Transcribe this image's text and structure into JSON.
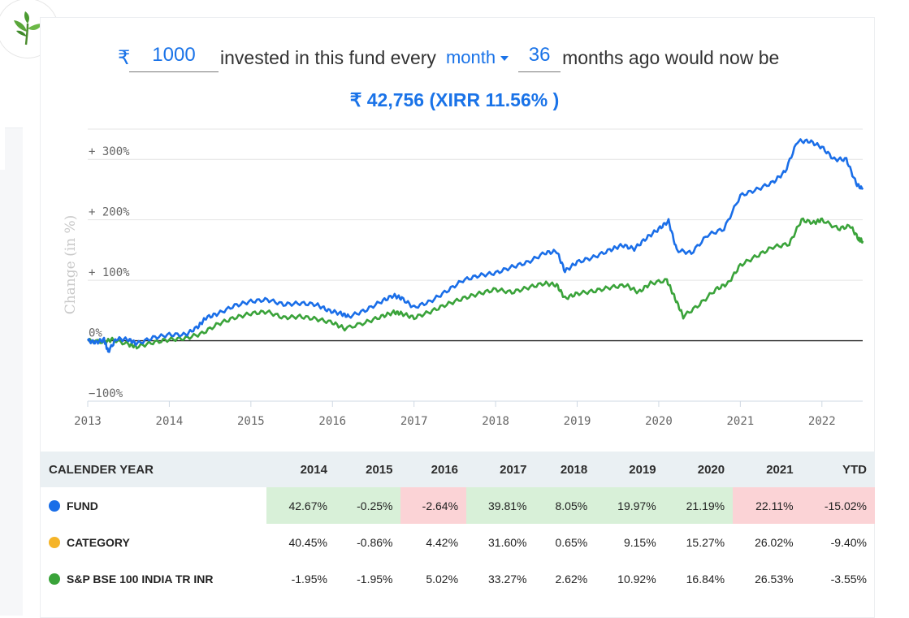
{
  "sip": {
    "currency_symbol": "₹",
    "amount": "1000",
    "text_invested": "invested in this fund every",
    "frequency": "month",
    "months": "36",
    "text_after": "months ago would now be",
    "result": "₹ 42,756 (XIRR 11.56% )"
  },
  "colors": {
    "accent": "#1a73e8",
    "fund_line": "#1a6ee8",
    "benchmark_line": "#3aa33a",
    "category_dot": "#f5b428",
    "positive_bg": "#d8f0d8",
    "negative_bg": "#fbd3d6"
  },
  "chart_data": {
    "type": "line",
    "ylabel": "Change (in %)",
    "ylim": [
      -100,
      350
    ],
    "xlim": [
      2013,
      2022.5
    ],
    "y_ticks": [
      {
        "value": 300,
        "label": "+ 300%"
      },
      {
        "value": 200,
        "label": "+ 200%"
      },
      {
        "value": 100,
        "label": "+ 100%"
      },
      {
        "value": 0,
        "label": "0%"
      },
      {
        "value": -100,
        "label": "−100%"
      }
    ],
    "x_ticks": [
      "2013",
      "2014",
      "2015",
      "2016",
      "2017",
      "2018",
      "2019",
      "2020",
      "2021",
      "2022"
    ],
    "series": [
      {
        "key": "fund",
        "color": "#1a6ee8",
        "points": [
          [
            2013.0,
            0
          ],
          [
            2013.1,
            -3
          ],
          [
            2013.2,
            2
          ],
          [
            2013.25,
            -18
          ],
          [
            2013.35,
            3
          ],
          [
            2013.5,
            2
          ],
          [
            2013.6,
            -5
          ],
          [
            2013.8,
            5
          ],
          [
            2014.0,
            10
          ],
          [
            2014.2,
            10
          ],
          [
            2014.35,
            23
          ],
          [
            2014.45,
            38
          ],
          [
            2014.6,
            45
          ],
          [
            2014.8,
            58
          ],
          [
            2015.0,
            65
          ],
          [
            2015.2,
            68
          ],
          [
            2015.4,
            60
          ],
          [
            2015.6,
            62
          ],
          [
            2015.8,
            60
          ],
          [
            2015.95,
            50
          ],
          [
            2016.1,
            45
          ],
          [
            2016.2,
            40
          ],
          [
            2016.4,
            50
          ],
          [
            2016.6,
            65
          ],
          [
            2016.75,
            75
          ],
          [
            2016.85,
            70
          ],
          [
            2017.0,
            55
          ],
          [
            2017.2,
            65
          ],
          [
            2017.4,
            82
          ],
          [
            2017.6,
            100
          ],
          [
            2017.8,
            108
          ],
          [
            2018.0,
            112
          ],
          [
            2018.2,
            122
          ],
          [
            2018.4,
            130
          ],
          [
            2018.6,
            145
          ],
          [
            2018.75,
            148
          ],
          [
            2018.85,
            115
          ],
          [
            2019.0,
            130
          ],
          [
            2019.2,
            138
          ],
          [
            2019.4,
            150
          ],
          [
            2019.55,
            158
          ],
          [
            2019.7,
            152
          ],
          [
            2019.85,
            170
          ],
          [
            2020.0,
            185
          ],
          [
            2020.12,
            198
          ],
          [
            2020.22,
            150
          ],
          [
            2020.4,
            145
          ],
          [
            2020.6,
            175
          ],
          [
            2020.8,
            185
          ],
          [
            2021.0,
            240
          ],
          [
            2021.2,
            250
          ],
          [
            2021.4,
            262
          ],
          [
            2021.55,
            280
          ],
          [
            2021.7,
            330
          ],
          [
            2021.85,
            330
          ],
          [
            2022.0,
            320
          ],
          [
            2022.15,
            300
          ],
          [
            2022.3,
            300
          ],
          [
            2022.42,
            260
          ],
          [
            2022.5,
            250
          ]
        ]
      },
      {
        "key": "benchmark",
        "color": "#3aa33a",
        "points": [
          [
            2013.0,
            0
          ],
          [
            2013.2,
            -2
          ],
          [
            2013.3,
            2
          ],
          [
            2013.5,
            -6
          ],
          [
            2013.6,
            -10
          ],
          [
            2013.8,
            -3
          ],
          [
            2014.0,
            2
          ],
          [
            2014.2,
            4
          ],
          [
            2014.4,
            12
          ],
          [
            2014.6,
            28
          ],
          [
            2014.8,
            38
          ],
          [
            2015.0,
            45
          ],
          [
            2015.2,
            48
          ],
          [
            2015.4,
            38
          ],
          [
            2015.6,
            40
          ],
          [
            2015.8,
            36
          ],
          [
            2016.0,
            30
          ],
          [
            2016.15,
            20
          ],
          [
            2016.4,
            30
          ],
          [
            2016.6,
            40
          ],
          [
            2016.75,
            47
          ],
          [
            2016.85,
            45
          ],
          [
            2017.0,
            38
          ],
          [
            2017.2,
            48
          ],
          [
            2017.4,
            60
          ],
          [
            2017.6,
            70
          ],
          [
            2017.8,
            78
          ],
          [
            2018.0,
            85
          ],
          [
            2018.2,
            80
          ],
          [
            2018.4,
            88
          ],
          [
            2018.6,
            95
          ],
          [
            2018.75,
            92
          ],
          [
            2018.85,
            70
          ],
          [
            2019.0,
            78
          ],
          [
            2019.2,
            82
          ],
          [
            2019.4,
            88
          ],
          [
            2019.6,
            92
          ],
          [
            2019.75,
            80
          ],
          [
            2019.9,
            95
          ],
          [
            2020.1,
            100
          ],
          [
            2020.2,
            70
          ],
          [
            2020.3,
            40
          ],
          [
            2020.5,
            60
          ],
          [
            2020.7,
            85
          ],
          [
            2020.85,
            95
          ],
          [
            2021.0,
            125
          ],
          [
            2021.2,
            140
          ],
          [
            2021.4,
            155
          ],
          [
            2021.6,
            160
          ],
          [
            2021.75,
            200
          ],
          [
            2021.9,
            195
          ],
          [
            2022.0,
            200
          ],
          [
            2022.2,
            185
          ],
          [
            2022.35,
            190
          ],
          [
            2022.45,
            168
          ],
          [
            2022.5,
            165
          ]
        ]
      }
    ]
  },
  "returns_table": {
    "headers": [
      "CALENDER YEAR",
      "2014",
      "2015",
      "2016",
      "2017",
      "2018",
      "2019",
      "2020",
      "2021",
      "YTD"
    ],
    "rows": [
      {
        "name": "FUND",
        "dot": "#1a6ee8",
        "values": [
          "42.67%",
          "-0.25%",
          "-2.64%",
          "39.81%",
          "8.05%",
          "19.97%",
          "21.19%",
          "22.11%",
          "-15.02%"
        ],
        "highlight": [
          "pos",
          "pos",
          "neg",
          "pos",
          "pos",
          "pos",
          "pos",
          "neg",
          "neg"
        ]
      },
      {
        "name": "CATEGORY",
        "dot": "#f5b428",
        "values": [
          "40.45%",
          "-0.86%",
          "4.42%",
          "31.60%",
          "0.65%",
          "9.15%",
          "15.27%",
          "26.02%",
          "-9.40%"
        ],
        "highlight": [
          "",
          "",
          "",
          "",
          "",
          "",
          "",
          "",
          ""
        ]
      },
      {
        "name": "S&P BSE 100 INDIA TR INR",
        "dot": "#3aa33a",
        "values": [
          "-1.95%",
          "-1.95%",
          "5.02%",
          "33.27%",
          "2.62%",
          "10.92%",
          "16.84%",
          "26.53%",
          "-3.55%"
        ],
        "highlight": [
          "",
          "",
          "",
          "",
          "",
          "",
          "",
          "",
          ""
        ]
      }
    ]
  }
}
